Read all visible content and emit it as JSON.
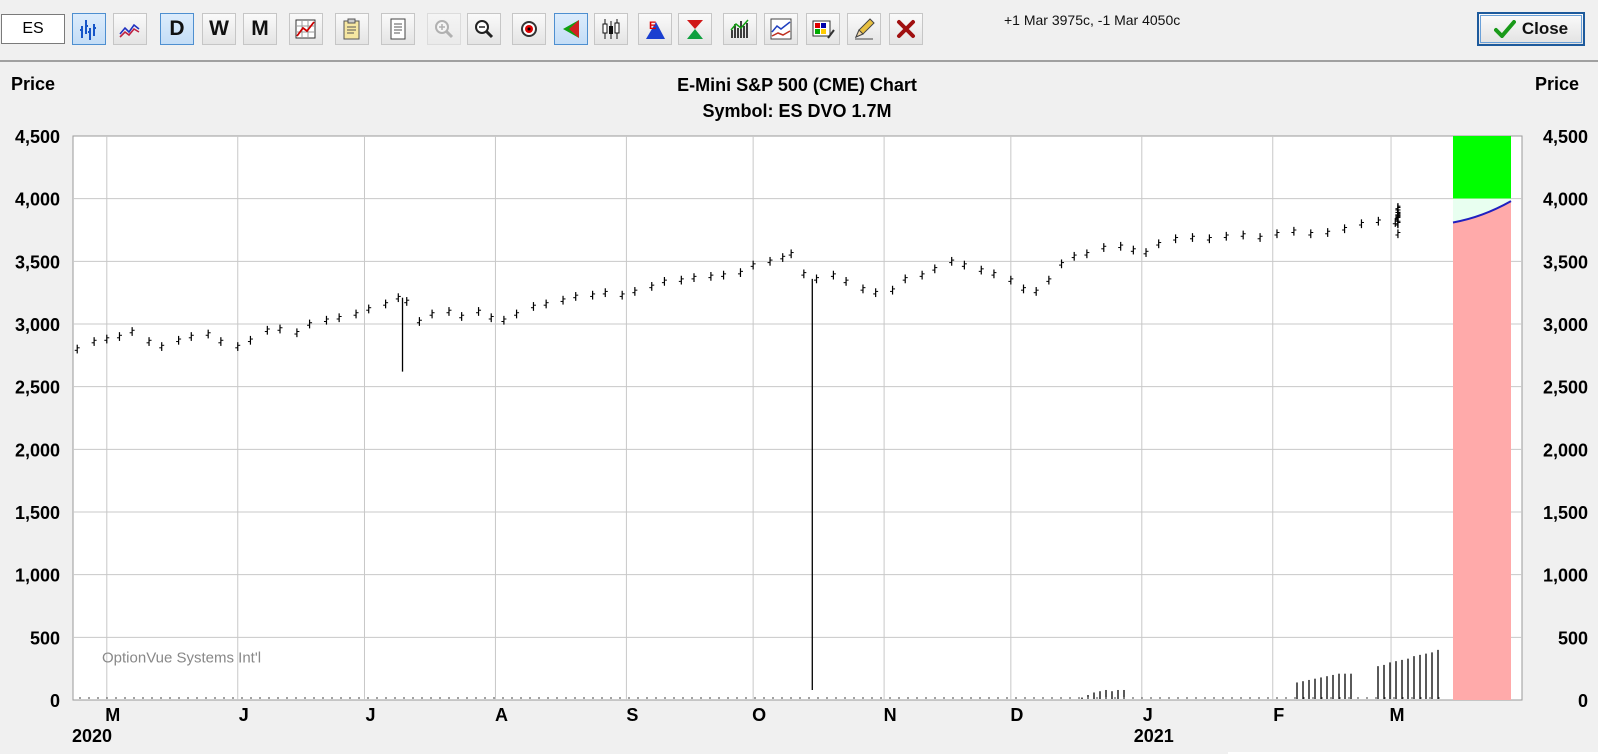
{
  "toolbar": {
    "symbol_input": "ES",
    "buttons": [
      {
        "name": "bar-chart-button",
        "icon": "bar-chart-icon",
        "label": "",
        "active": true
      },
      {
        "name": "line-chart-button",
        "icon": "line-chart-icon",
        "label": "",
        "active": false
      },
      {
        "name": "daily-button",
        "icon": "",
        "label": "D",
        "active": true
      },
      {
        "name": "weekly-button",
        "icon": "",
        "label": "W",
        "active": false
      },
      {
        "name": "monthly-button",
        "icon": "",
        "label": "M",
        "active": false
      },
      {
        "name": "chart-settings-button",
        "icon": "chart-grid-icon",
        "label": "",
        "active": false
      },
      {
        "name": "copy-button",
        "icon": "clipboard-icon",
        "label": "",
        "active": false
      },
      {
        "name": "print-button",
        "icon": "document-icon",
        "label": "",
        "active": false
      },
      {
        "name": "zoom-in-button",
        "icon": "zoom-in-icon",
        "label": "",
        "active": false,
        "disabled": true
      },
      {
        "name": "zoom-out-button",
        "icon": "zoom-out-icon",
        "label": "",
        "active": false
      },
      {
        "name": "target-button",
        "icon": "target-icon",
        "label": "",
        "active": false
      },
      {
        "name": "arrow-tool-button",
        "icon": "green-arrow-icon",
        "label": "",
        "active": true
      },
      {
        "name": "candlestick-button",
        "icon": "candlestick-icon",
        "label": "",
        "active": false
      },
      {
        "name": "earnings-button",
        "icon": "earnings-e-icon",
        "label": "",
        "active": false
      },
      {
        "name": "hourglass-button",
        "icon": "hourglass-icon",
        "label": "",
        "active": false
      },
      {
        "name": "volume-button",
        "icon": "volume-bars-icon",
        "label": "",
        "active": false
      },
      {
        "name": "indicators-button",
        "icon": "indicator-chart-icon",
        "label": "",
        "active": false
      },
      {
        "name": "colors-button",
        "icon": "palette-icon",
        "label": "",
        "active": false
      },
      {
        "name": "draw-button",
        "icon": "pencil-icon",
        "label": "",
        "active": false
      },
      {
        "name": "delete-button",
        "icon": "red-x-icon",
        "label": "",
        "active": false
      }
    ],
    "position_note": "+1 Mar 3975c, -1 Mar 4050c",
    "close_label": "Close"
  },
  "chart_header": {
    "left_axis_title": "Price",
    "right_axis_title": "Price",
    "title_line1": "E-Mini S&P 500 (CME) Chart",
    "title_line2": "Symbol: ES  DVO 1.7M",
    "watermark": "OptionVue Systems Int'l"
  },
  "colors": {
    "plot_bg": "#ffffff",
    "grid": "#c8c8c8",
    "bars": "#000000",
    "upper_zone": "#00ff00",
    "lower_zone": "#ffaaaa",
    "projection_line": "#2020c0"
  },
  "chart_data": {
    "type": "bar",
    "title": "E-Mini S&P 500 (CME) Chart",
    "subtitle": "Symbol: ES  DVO 1.7M",
    "ylabel": "Price",
    "ylim": [
      0,
      4500
    ],
    "y_ticks": [
      "0",
      "500",
      "1,000",
      "1,500",
      "2,000",
      "2,500",
      "3,000",
      "3,500",
      "4,000",
      "4,500"
    ],
    "x_ticks": [
      "M",
      "J",
      "J",
      "A",
      "S",
      "O",
      "N",
      "D",
      "J",
      "F",
      "M"
    ],
    "x_tick_dates": [
      "2020-05-01",
      "2020-06-01",
      "2020-07-01",
      "2020-08-01",
      "2020-09-01",
      "2020-10-01",
      "2020-11-01",
      "2020-12-01",
      "2021-01-01",
      "2021-02-01",
      "2021-03-01"
    ],
    "year_labels": [
      {
        "label": "2020",
        "date": "2020-04-15"
      },
      {
        "label": "2021",
        "date": "2021-01-01"
      }
    ],
    "x_range": [
      "2020-04-23",
      "2021-04-01"
    ],
    "grid": true,
    "price_series": {
      "name": "ES daily close (approx.)",
      "points": [
        [
          "2020-04-24",
          2800
        ],
        [
          "2020-04-28",
          2860
        ],
        [
          "2020-05-01",
          2880
        ],
        [
          "2020-05-04",
          2900
        ],
        [
          "2020-05-07",
          2940
        ],
        [
          "2020-05-11",
          2860
        ],
        [
          "2020-05-14",
          2820
        ],
        [
          "2020-05-18",
          2870
        ],
        [
          "2020-05-21",
          2900
        ],
        [
          "2020-05-25",
          2920
        ],
        [
          "2020-05-28",
          2860
        ],
        [
          "2020-06-01",
          2820
        ],
        [
          "2020-06-04",
          2870
        ],
        [
          "2020-06-08",
          2950
        ],
        [
          "2020-06-11",
          2960
        ],
        [
          "2020-06-15",
          2930
        ],
        [
          "2020-06-18",
          3000
        ],
        [
          "2020-06-22",
          3030
        ],
        [
          "2020-06-25",
          3050
        ],
        [
          "2020-06-29",
          3080
        ],
        [
          "2020-07-02",
          3120
        ],
        [
          "2020-07-06",
          3160
        ],
        [
          "2020-07-09",
          3210
        ],
        [
          "2020-07-11",
          3180
        ],
        [
          "2020-07-14",
          3020
        ],
        [
          "2020-07-17",
          3080
        ],
        [
          "2020-07-21",
          3100
        ],
        [
          "2020-07-24",
          3060
        ],
        [
          "2020-07-28",
          3100
        ],
        [
          "2020-07-31",
          3050
        ],
        [
          "2020-08-03",
          3030
        ],
        [
          "2020-08-06",
          3080
        ],
        [
          "2020-08-10",
          3140
        ],
        [
          "2020-08-13",
          3160
        ],
        [
          "2020-08-17",
          3190
        ],
        [
          "2020-08-20",
          3220
        ],
        [
          "2020-08-24",
          3230
        ],
        [
          "2020-08-27",
          3250
        ],
        [
          "2020-08-31",
          3230
        ],
        [
          "2020-09-03",
          3260
        ],
        [
          "2020-09-07",
          3300
        ],
        [
          "2020-09-10",
          3340
        ],
        [
          "2020-09-14",
          3350
        ],
        [
          "2020-09-17",
          3370
        ],
        [
          "2020-09-21",
          3380
        ],
        [
          "2020-09-24",
          3390
        ],
        [
          "2020-09-28",
          3410
        ],
        [
          "2020-10-01",
          3470
        ],
        [
          "2020-10-05",
          3500
        ],
        [
          "2020-10-08",
          3530
        ],
        [
          "2020-10-10",
          3560
        ],
        [
          "2020-10-13",
          3400
        ],
        [
          "2020-10-16",
          3360
        ],
        [
          "2020-10-20",
          3390
        ],
        [
          "2020-10-23",
          3340
        ],
        [
          "2020-10-27",
          3280
        ],
        [
          "2020-10-30",
          3250
        ],
        [
          "2020-11-03",
          3270
        ],
        [
          "2020-11-06",
          3360
        ],
        [
          "2020-11-10",
          3390
        ],
        [
          "2020-11-13",
          3440
        ],
        [
          "2020-11-17",
          3500
        ],
        [
          "2020-11-20",
          3470
        ],
        [
          "2020-11-24",
          3430
        ],
        [
          "2020-11-27",
          3400
        ],
        [
          "2020-12-01",
          3350
        ],
        [
          "2020-12-04",
          3280
        ],
        [
          "2020-12-07",
          3260
        ],
        [
          "2020-12-10",
          3350
        ],
        [
          "2020-12-13",
          3480
        ],
        [
          "2020-12-16",
          3540
        ],
        [
          "2020-12-19",
          3560
        ],
        [
          "2020-12-23",
          3610
        ],
        [
          "2020-12-27",
          3620
        ],
        [
          "2020-12-30",
          3590
        ],
        [
          "2021-01-02",
          3570
        ],
        [
          "2021-01-05",
          3640
        ],
        [
          "2021-01-09",
          3680
        ],
        [
          "2021-01-13",
          3690
        ],
        [
          "2021-01-17",
          3680
        ],
        [
          "2021-01-21",
          3700
        ],
        [
          "2021-01-25",
          3710
        ],
        [
          "2021-01-29",
          3690
        ],
        [
          "2021-02-02",
          3720
        ],
        [
          "2021-02-06",
          3740
        ],
        [
          "2021-02-10",
          3720
        ],
        [
          "2021-02-14",
          3730
        ],
        [
          "2021-02-18",
          3760
        ],
        [
          "2021-02-22",
          3800
        ],
        [
          "2021-02-26",
          3820
        ],
        [
          "2021-03-02",
          3810
        ],
        [
          "2021-03-06",
          3800
        ],
        [
          "2021-03-10",
          3850
        ],
        [
          "2021-03-14",
          3850
        ],
        [
          "2021-03-18",
          3860
        ],
        [
          "2021-03-22",
          3870
        ],
        [
          "2021-03-26",
          3870
        ],
        [
          "2021-03-30",
          3880
        ],
        [
          "2021-04-03",
          3850
        ],
        [
          "2021-04-07",
          3720
        ],
        [
          "2021-04-11",
          3800
        ],
        [
          "2021-04-15",
          3880
        ],
        [
          "2021-04-19",
          3900
        ],
        [
          "2021-04-23",
          3920
        ],
        [
          "2021-04-27",
          3920
        ],
        [
          "2021-04-30",
          3930
        ],
        [
          "2021-05-04",
          3900
        ],
        [
          "2021-05-08",
          3880
        ],
        [
          "2021-05-12",
          3880
        ],
        [
          "2021-05-16",
          3860
        ],
        [
          "2021-05-20",
          3810
        ],
        [
          "2021-05-24",
          3880
        ],
        [
          "2021-05-28",
          3840
        ]
      ]
    },
    "spikes": [
      {
        "date": "2020-07-10",
        "low": 2620,
        "high": 3210
      },
      {
        "date": "2020-10-15",
        "low": 80,
        "high": 3360
      }
    ],
    "volume_bars": {
      "dates": [
        "2020-12-15",
        "2020-12-19",
        "2020-12-23",
        "2020-12-27",
        "2020-12-31",
        "2021-01-04",
        "2021-01-08",
        "2021-01-12",
        "2021-02-20",
        "2021-02-24",
        "2021-02-28",
        "2021-03-04",
        "2021-03-08",
        "2021-03-12",
        "2021-03-16",
        "2021-03-20",
        "2021-03-24",
        "2021-03-28",
        "2021-04-12",
        "2021-04-16",
        "2021-04-20",
        "2021-04-24",
        "2021-04-28",
        "2021-05-02",
        "2021-05-06",
        "2021-05-10",
        "2021-05-14",
        "2021-05-18",
        "2021-05-22"
      ],
      "values": [
        20,
        40,
        60,
        70,
        80,
        70,
        80,
        80,
        140,
        150,
        160,
        170,
        180,
        190,
        200,
        210,
        210,
        210,
        270,
        280,
        300,
        310,
        320,
        330,
        350,
        360,
        370,
        380,
        400
      ]
    },
    "zones": {
      "upper": [
        4000,
        4500
      ],
      "lower": [
        0,
        4000
      ]
    },
    "projection": {
      "start": 3810,
      "end": 3980
    }
  }
}
